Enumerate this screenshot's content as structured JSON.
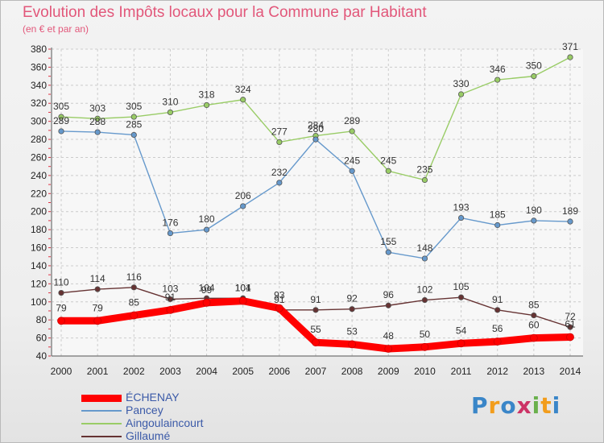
{
  "title": "Evolution des Impôts locaux pour la Commune par Habitant",
  "subtitle": "(en € et par an)",
  "chart_data": {
    "type": "line",
    "title": "Evolution des Impôts locaux pour la Commune par Habitant",
    "subtitle": "(en € et par an)",
    "x": [
      2000,
      2001,
      2002,
      2003,
      2004,
      2005,
      2006,
      2007,
      2008,
      2009,
      2010,
      2011,
      2012,
      2013,
      2014
    ],
    "ylim": [
      40,
      380
    ],
    "yticks": [
      40,
      60,
      80,
      100,
      120,
      140,
      160,
      180,
      200,
      220,
      240,
      260,
      280,
      300,
      320,
      340,
      360,
      380
    ],
    "grid": true,
    "legend_position": "bottom-left",
    "series": [
      {
        "name": "ÉCHENAY",
        "color": "#ff0000",
        "values": [
          79,
          79,
          85,
          91,
          99,
          101,
          93,
          55,
          53,
          48,
          50,
          54,
          56,
          60,
          61
        ]
      },
      {
        "name": "Pancey",
        "color": "#6699cc",
        "values": [
          289,
          288,
          285,
          176,
          180,
          206,
          232,
          280,
          245,
          155,
          148,
          193,
          185,
          190,
          189
        ]
      },
      {
        "name": "Aingoulaincourt",
        "color": "#99cc66",
        "values": [
          305,
          303,
          305,
          310,
          318,
          324,
          277,
          284,
          289,
          245,
          235,
          330,
          346,
          350,
          371
        ]
      },
      {
        "name": "Gillaumé",
        "color": "#663333",
        "values": [
          110,
          114,
          116,
          103,
          104,
          104,
          91,
          91,
          92,
          96,
          102,
          105,
          91,
          85,
          72
        ]
      }
    ]
  },
  "logo": {
    "letters": [
      "P",
      "r",
      "o",
      "x",
      "i",
      "t",
      "i"
    ],
    "colors": [
      "#3a86c8",
      "#f29d1c",
      "#3a86c8",
      "#cc3366",
      "#6ab04c",
      "#f29d1c",
      "#3a86c8"
    ]
  }
}
